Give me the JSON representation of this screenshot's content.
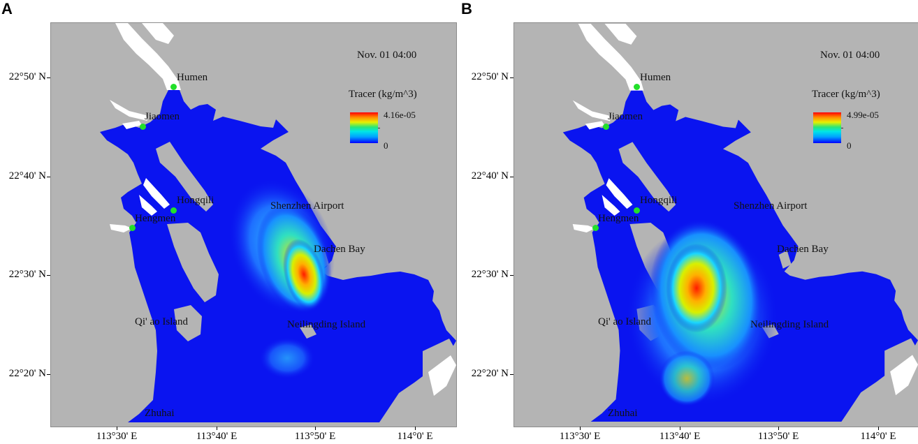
{
  "figure": {
    "colors": {
      "land": "#b4b4b4",
      "water_low": "#0a14f0",
      "river": "#ffffff",
      "station_marker": "#22e02a"
    },
    "icons": [
      "station-marker-icon",
      "colorbar-icon"
    ],
    "panels": [
      {
        "letter": "A",
        "timestamp": "Nov. 01 04:00",
        "legend_title": "Tracer (kg/m^3)",
        "legend_max": "4.16e-05",
        "legend_min": "0",
        "y_labels": [
          "22°50' N",
          "22°40' N",
          "22°30' N",
          "22°20' N"
        ],
        "x_labels": [
          "113°30' E",
          "113°40' E",
          "113°50' E",
          "114°0' E"
        ],
        "places": {
          "humen": "Humen",
          "jiaomen": "Jiaomen",
          "hongqili": "Hongqili",
          "hengmen": "Hengmen",
          "shenzhen_airport": "Shenzhen Airport",
          "dachen_bay": "Dachen Bay",
          "qiao_island": "Qi' ao Island",
          "neilingding_island": "Neilingding Island",
          "zhuhai": "Zhuhai"
        }
      },
      {
        "letter": "B",
        "timestamp": "Nov. 01 04:00",
        "legend_title": "Tracer (kg/m^3)",
        "legend_max": "4.99e-05",
        "legend_min": "0",
        "y_labels": [
          "22°50' N",
          "22°40' N",
          "22°30' N",
          "22°20' N"
        ],
        "x_labels": [
          "113°30' E",
          "113°40' E",
          "113°50' E",
          "114°0' E"
        ],
        "places": {
          "humen": "Humen",
          "jiaomen": "Jiaomen",
          "hongqili": "Hongqili",
          "hengmen": "Hengmen",
          "shenzhen_airport": "Shenzhen Airport",
          "dachen_bay": "Dachen Bay",
          "qiao_island": "Qi' ao Island",
          "neilingding_island": "Neilingding Island",
          "zhuhai": "Zhuhai"
        }
      }
    ]
  }
}
